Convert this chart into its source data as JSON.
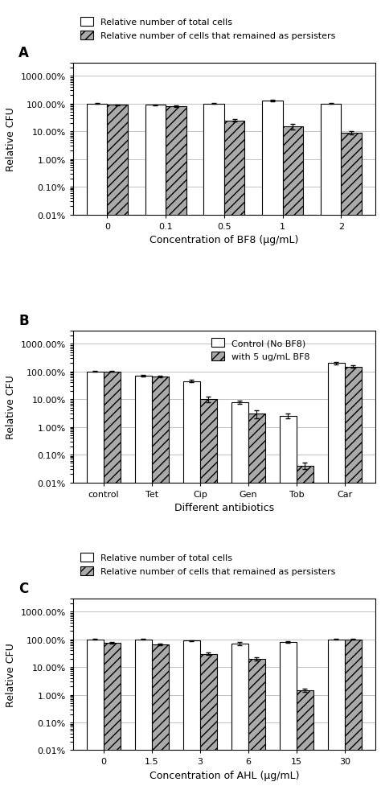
{
  "panel_A": {
    "label": "A",
    "categories": [
      "0",
      "0.1",
      "0.5",
      "1",
      "2"
    ],
    "bar1_values": [
      100,
      90,
      100,
      130,
      100
    ],
    "bar2_values": [
      90,
      80,
      25,
      15,
      9
    ],
    "bar1_errors": [
      2,
      3,
      3,
      10,
      3
    ],
    "bar2_errors": [
      3,
      5,
      3,
      3,
      1
    ],
    "xlabel": "Concentration of BF8 (μg/mL)",
    "ylabel": "Relative CFU",
    "legend1": "Relative number of total cells",
    "legend2": "Relative number of cells that remained as persisters",
    "ylim": [
      0.01,
      3000
    ],
    "yticks": [
      0.01,
      0.1,
      1.0,
      10.0,
      100.0,
      1000.0
    ],
    "ytick_labels": [
      "0.01%",
      "0.10%",
      "1.00%",
      "10.00%",
      "100.00%",
      "1000.00%"
    ]
  },
  "panel_B": {
    "label": "B",
    "categories": [
      "control",
      "Tet",
      "Cip",
      "Gen",
      "Tob",
      "Car"
    ],
    "bar1_values": [
      100,
      70,
      45,
      8,
      2.5,
      200
    ],
    "bar2_values": [
      100,
      65,
      10,
      3,
      0.04,
      150
    ],
    "bar1_errors": [
      2,
      3,
      4,
      1,
      0.5,
      20
    ],
    "bar2_errors": [
      3,
      5,
      2,
      1,
      0.01,
      15
    ],
    "xlabel": "Different antibiotics",
    "ylabel": "Relative CFU",
    "legend1": "Control (No BF8)",
    "legend2": "with 5 ug/mL BF8",
    "ylim": [
      0.01,
      3000
    ],
    "yticks": [
      0.01,
      0.1,
      1.0,
      10.0,
      100.0,
      1000.0
    ],
    "ytick_labels": [
      "0.01%",
      "0.10%",
      "1.00%",
      "10.00%",
      "100.00%",
      "1000.00%"
    ]
  },
  "panel_C": {
    "label": "C",
    "categories": [
      "0",
      "1.5",
      "3",
      "6",
      "15",
      "30"
    ],
    "bar1_values": [
      100,
      100,
      90,
      70,
      80,
      100
    ],
    "bar2_values": [
      75,
      65,
      30,
      20,
      1.5,
      100
    ],
    "bar1_errors": [
      3,
      3,
      3,
      8,
      5,
      3
    ],
    "bar2_errors": [
      5,
      5,
      3,
      3,
      0.2,
      3
    ],
    "xlabel": "Concentration of AHL (μg/mL)",
    "ylabel": "Relative CFU",
    "legend1": "Relative number of total cells",
    "legend2": "Relative number of cells that remained as persisters",
    "ylim": [
      0.01,
      3000
    ],
    "yticks": [
      0.01,
      0.1,
      1.0,
      10.0,
      100.0,
      1000.0
    ],
    "ytick_labels": [
      "0.01%",
      "0.10%",
      "1.00%",
      "10.00%",
      "100.00%",
      "1000.00%"
    ]
  },
  "bar_width": 0.35,
  "color_bar1": "#ffffff",
  "color_bar2": "#aaaaaa",
  "edgecolor": "#000000",
  "hatch_bar2": "///",
  "figure_bg": "#ffffff",
  "label_fontsize": 9,
  "tick_fontsize": 8,
  "legend_fontsize": 8,
  "panel_label_fontsize": 12
}
